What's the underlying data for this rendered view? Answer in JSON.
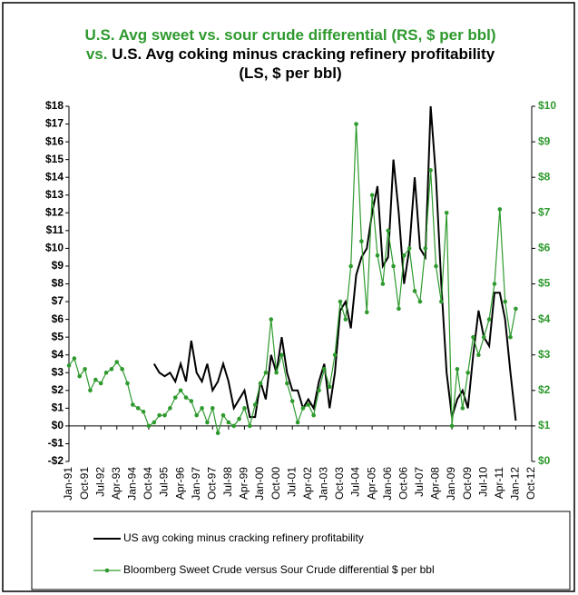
{
  "chart_data": {
    "type": "line",
    "title": [
      "U.S. Avg sweet vs. sour crude differential (RS, $ per bbl) vs.",
      "U.S. Avg coking minus cracking refinery profitability (LS, $ per bbl)"
    ],
    "x": [
      1991,
      1991.25,
      1991.5,
      1991.75,
      1992,
      1992.25,
      1992.5,
      1992.75,
      1993,
      1993.25,
      1993.5,
      1993.75,
      1994,
      1994.25,
      1994.5,
      1994.75,
      1995,
      1995.25,
      1995.5,
      1995.75,
      1996,
      1996.25,
      1996.5,
      1996.75,
      1997,
      1997.25,
      1997.5,
      1997.75,
      1998,
      1998.25,
      1998.5,
      1998.75,
      1999,
      1999.25,
      1999.5,
      1999.75,
      2000,
      2000.25,
      2000.5,
      2000.75,
      2001,
      2001.25,
      2001.5,
      2001.75,
      2002,
      2002.25,
      2002.5,
      2002.75,
      2003,
      2003.25,
      2003.5,
      2003.75,
      2004,
      2004.25,
      2004.5,
      2004.75,
      2005,
      2005.25,
      2005.5,
      2005.75,
      2006,
      2006.25,
      2006.5,
      2006.75,
      2007,
      2007.25,
      2007.5,
      2007.75,
      2008,
      2008.25,
      2008.5,
      2008.75,
      2009,
      2009.25,
      2009.5,
      2009.75,
      2010,
      2010.25,
      2010.5,
      2010.75,
      2011,
      2011.25,
      2011.5,
      2011.75,
      2012
    ],
    "series": [
      {
        "name": "US avg coking minus cracking refinery profitability",
        "color": "#000000",
        "axis": "y",
        "values": [
          null,
          null,
          null,
          null,
          null,
          null,
          null,
          null,
          null,
          null,
          null,
          null,
          null,
          null,
          null,
          null,
          3.5,
          3.0,
          2.8,
          3.0,
          2.5,
          3.5,
          2.5,
          4.8,
          3.0,
          2.5,
          3.5,
          2.0,
          2.5,
          3.5,
          2.5,
          1.0,
          1.5,
          2.0,
          0.5,
          0.5,
          2.5,
          1.5,
          4.0,
          3.0,
          5.0,
          3.0,
          2.0,
          2.0,
          1.0,
          1.5,
          1.0,
          2.5,
          3.5,
          1.0,
          3.0,
          6.5,
          7.0,
          5.5,
          8.5,
          9.5,
          10.0,
          12.0,
          13.5,
          9.0,
          9.5,
          15.0,
          12.0,
          8.0,
          10.0,
          14.0,
          10.0,
          9.5,
          18.0,
          14.0,
          8.0,
          3.0,
          0.5,
          1.5,
          2.0,
          1.0,
          4.0,
          6.5,
          5.0,
          4.5,
          7.5,
          7.5,
          6.0,
          3.0,
          0.3
        ]
      },
      {
        "name": "Bloomberg Sweet Crude versus Sour Crude differential $ per bbl",
        "color": "#2e9a2e",
        "axis": "y2",
        "values": [
          2.7,
          2.9,
          2.4,
          2.6,
          2.0,
          2.3,
          2.2,
          2.5,
          2.6,
          2.8,
          2.6,
          2.2,
          1.6,
          1.5,
          1.4,
          1.0,
          1.1,
          1.3,
          1.3,
          1.5,
          1.8,
          2.0,
          1.8,
          1.7,
          1.3,
          1.5,
          1.1,
          1.5,
          0.8,
          1.3,
          1.1,
          1.0,
          1.2,
          1.5,
          1.0,
          1.6,
          2.2,
          2.5,
          4.0,
          2.5,
          3.0,
          2.2,
          1.7,
          1.1,
          1.5,
          1.6,
          1.3,
          2.0,
          2.6,
          2.1,
          3.0,
          4.5,
          4.0,
          5.5,
          9.5,
          6.2,
          4.2,
          7.5,
          5.8,
          5.0,
          6.5,
          5.5,
          4.3,
          5.8,
          6.0,
          4.8,
          4.5,
          6.0,
          8.2,
          5.5,
          4.5,
          7.0,
          1.0,
          2.6,
          1.5,
          2.5,
          3.5,
          3.0,
          3.5,
          4.0,
          5.0,
          7.1,
          4.5,
          3.5,
          4.3
        ]
      }
    ],
    "xlim": [
      1991,
      2012.75
    ],
    "xticks": [
      {
        "value": 1991,
        "label": "Jan-91"
      },
      {
        "value": 1991.75,
        "label": "Oct-91"
      },
      {
        "value": 1992.5,
        "label": "Jul-92"
      },
      {
        "value": 1993.25,
        "label": "Apr-93"
      },
      {
        "value": 1994,
        "label": "Jan-94"
      },
      {
        "value": 1994.75,
        "label": "Oct-94"
      },
      {
        "value": 1995.5,
        "label": "Jul-95"
      },
      {
        "value": 1996.25,
        "label": "Apr-96"
      },
      {
        "value": 1997,
        "label": "Jan-97"
      },
      {
        "value": 1997.75,
        "label": "Oct-97"
      },
      {
        "value": 1998.5,
        "label": "Jul-98"
      },
      {
        "value": 1999.25,
        "label": "Apr-99"
      },
      {
        "value": 2000,
        "label": "Jan-00"
      },
      {
        "value": 2000.75,
        "label": "Oct-00"
      },
      {
        "value": 2001.5,
        "label": "Jul-01"
      },
      {
        "value": 2002.25,
        "label": "Apr-02"
      },
      {
        "value": 2003,
        "label": "Jan-03"
      },
      {
        "value": 2003.75,
        "label": "Oct-03"
      },
      {
        "value": 2004.5,
        "label": "Jul-04"
      },
      {
        "value": 2005.25,
        "label": "Apr-05"
      },
      {
        "value": 2006,
        "label": "Jan-06"
      },
      {
        "value": 2006.75,
        "label": "Oct-06"
      },
      {
        "value": 2007.5,
        "label": "Jul-07"
      },
      {
        "value": 2008.25,
        "label": "Apr-08"
      },
      {
        "value": 2009,
        "label": "Jan-09"
      },
      {
        "value": 2009.75,
        "label": "Oct-09"
      },
      {
        "value": 2010.5,
        "label": "Jul-10"
      },
      {
        "value": 2011.25,
        "label": "Apr-11"
      },
      {
        "value": 2012,
        "label": "Jan-12"
      },
      {
        "value": 2012.75,
        "label": "Oct-12"
      }
    ],
    "ylim": [
      -2,
      18
    ],
    "yticks": [
      {
        "value": -2,
        "label": "-$2"
      },
      {
        "value": -1,
        "label": "-$1"
      },
      {
        "value": 0,
        "label": "$0"
      },
      {
        "value": 1,
        "label": "$1"
      },
      {
        "value": 2,
        "label": "$2"
      },
      {
        "value": 3,
        "label": "$3"
      },
      {
        "value": 4,
        "label": "$4"
      },
      {
        "value": 5,
        "label": "$5"
      },
      {
        "value": 6,
        "label": "$6"
      },
      {
        "value": 7,
        "label": "$7"
      },
      {
        "value": 8,
        "label": "$8"
      },
      {
        "value": 9,
        "label": "$9"
      },
      {
        "value": 10,
        "label": "$10"
      },
      {
        "value": 11,
        "label": "$11"
      },
      {
        "value": 12,
        "label": "$12"
      },
      {
        "value": 13,
        "label": "$13"
      },
      {
        "value": 14,
        "label": "$14"
      },
      {
        "value": 15,
        "label": "$15"
      },
      {
        "value": 16,
        "label": "$16"
      },
      {
        "value": 17,
        "label": "$17"
      },
      {
        "value": 18,
        "label": "$18"
      }
    ],
    "y2lim": [
      0,
      10
    ],
    "y2ticks": [
      {
        "value": 0,
        "label": "$0"
      },
      {
        "value": 1,
        "label": "$1"
      },
      {
        "value": 2,
        "label": "$2"
      },
      {
        "value": 3,
        "label": "$3"
      },
      {
        "value": 4,
        "label": "$4"
      },
      {
        "value": 5,
        "label": "$5"
      },
      {
        "value": 6,
        "label": "$6"
      },
      {
        "value": 7,
        "label": "$7"
      },
      {
        "value": 8,
        "label": "$8"
      },
      {
        "value": 9,
        "label": "$9"
      },
      {
        "value": 10,
        "label": "$10"
      }
    ],
    "y2_color": "#2e9a2e"
  }
}
